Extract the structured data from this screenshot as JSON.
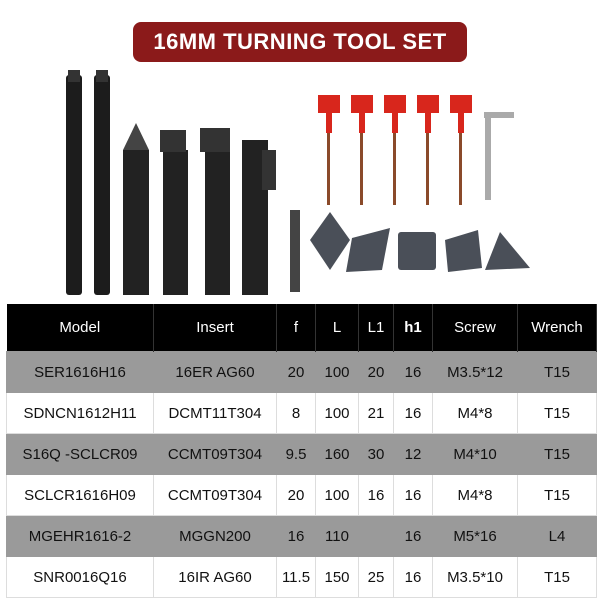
{
  "title": "16MM TURNING TOOL SET",
  "table": {
    "headers": [
      "Model",
      "Insert",
      "f",
      "L",
      "L1",
      "h1",
      "Screw",
      "Wrench"
    ],
    "rows": [
      [
        "SER1616H16",
        "16ER AG60",
        "20",
        "100",
        "20",
        "16",
        "M3.5*12",
        "T15"
      ],
      [
        "SDNCN1612H11",
        "DCMT11T304",
        "8",
        "100",
        "21",
        "16",
        "M4*8",
        "T15"
      ],
      [
        "S16Q -SCLCR09",
        "CCMT09T304",
        "9.5",
        "160",
        "30",
        "12",
        "M4*10",
        "T15"
      ],
      [
        "SCLCR1616H09",
        "CCMT09T304",
        "20",
        "100",
        "16",
        "16",
        "M4*8",
        "T15"
      ],
      [
        "MGEHR1616-2",
        "MGGN200",
        "16",
        "110",
        "",
        "16",
        "M5*16",
        "L4"
      ],
      [
        "SNR0016Q16",
        "16IR AG60",
        "11.5",
        "150",
        "25",
        "16",
        "M3.5*10",
        "T15"
      ]
    ]
  },
  "colors": {
    "banner": "#8b1a1a",
    "wrench_handle": "#d8261c",
    "header_bg": "#000000",
    "row_shade": "#9a9a9a"
  }
}
